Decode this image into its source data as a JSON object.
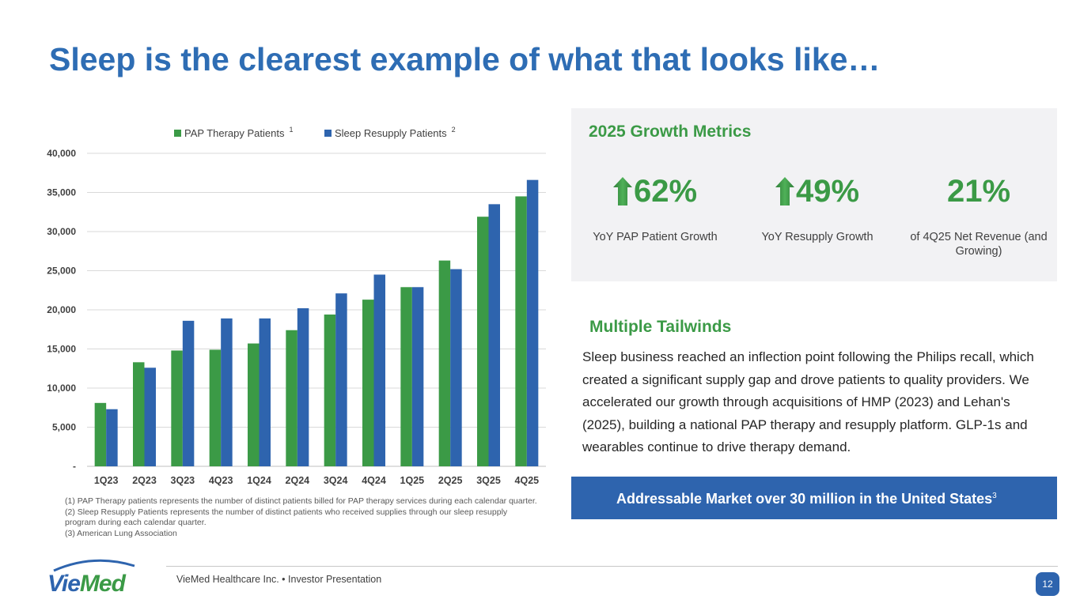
{
  "page": {
    "title": "Sleep is the clearest example of what that looks like…"
  },
  "chart_data": {
    "type": "bar",
    "categories": [
      "1Q23",
      "2Q23",
      "3Q23",
      "4Q23",
      "1Q24",
      "2Q24",
      "3Q24",
      "4Q24",
      "1Q25",
      "2Q25",
      "3Q25",
      "4Q25"
    ],
    "series": [
      {
        "name": "PAP Therapy Patients",
        "superscript": "1",
        "color": "#3b9a46",
        "values": [
          8100,
          13300,
          14800,
          14900,
          15700,
          17400,
          19400,
          21300,
          22900,
          26300,
          31900,
          34500
        ]
      },
      {
        "name": "Sleep Resupply Patients",
        "superscript": "2",
        "color": "#2e64ae",
        "values": [
          7300,
          12600,
          18600,
          18900,
          18900,
          20200,
          22100,
          24500,
          22900,
          25200,
          33500,
          36600
        ]
      }
    ],
    "ylim": [
      0,
      40000
    ],
    "yticks": [
      0,
      5000,
      10000,
      15000,
      20000,
      25000,
      30000,
      35000,
      40000
    ],
    "ytick_labels": [
      "-",
      "5,000",
      "10,000",
      "15,000",
      "20,000",
      "25,000",
      "30,000",
      "35,000",
      "40,000"
    ],
    "grid": true,
    "legend": "top-center",
    "title": "",
    "xlabel": "",
    "ylabel": ""
  },
  "footnotes": [
    "(1) PAP Therapy patients represents the number of distinct patients billed for PAP therapy services during each calendar quarter.",
    "(2) Sleep Resupply Patients represents the number of distinct patients who received supplies through our sleep resupply program during each calendar quarter.",
    "(3) American Lung Association"
  ],
  "metrics": {
    "title": "2025 Growth Metrics",
    "items": [
      {
        "value": "62%",
        "label": "YoY PAP Patient Growth",
        "icon": "up-arrow-icon"
      },
      {
        "value": "49%",
        "label": "YoY Resupply Growth",
        "icon": "up-arrow-icon"
      },
      {
        "value": "21%",
        "label": "of 4Q25 Net Revenue (and Growing)"
      }
    ]
  },
  "tailwinds": {
    "title": "Multiple Tailwinds",
    "body": "Sleep business reached an inflection point following the Philips recall, which created a significant supply gap and drove patients to quality providers. We accelerated our growth through acquisitions of HMP (2023) and Lehan's (2025), building a national PAP therapy and resupply platform. GLP-1s and wearables continue to drive therapy demand."
  },
  "market": {
    "text": "Addressable Market over 30 million in the United States",
    "superscript": "3"
  },
  "footer": {
    "logo_text": "VieMed",
    "text": "VieMed Healthcare Inc.  •  Investor Presentation",
    "page_number": "12"
  },
  "colors": {
    "title_blue": "#2e6db4",
    "green": "#3b9a46",
    "blue": "#2e64ae",
    "panel_bg": "#f2f2f4"
  }
}
